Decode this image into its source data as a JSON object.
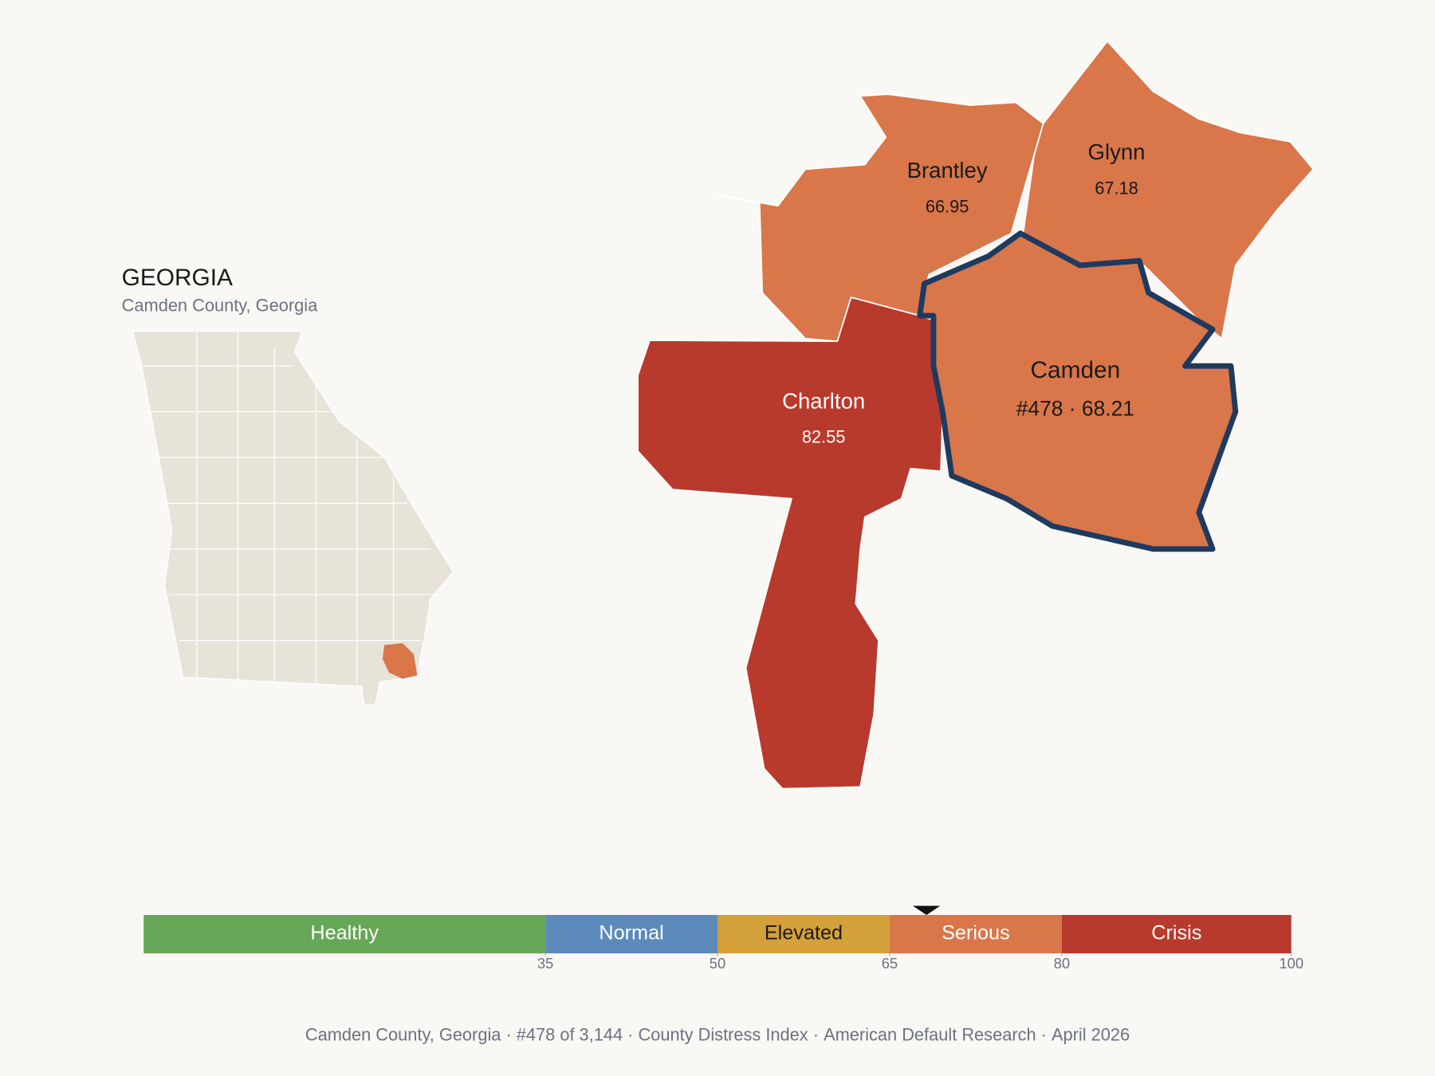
{
  "header": {
    "title": "GEORGIA",
    "subtitle": "Camden County, Georgia"
  },
  "counties": [
    {
      "name": "Brantley",
      "score": 66.95
    },
    {
      "name": "Glynn",
      "score": 67.18
    },
    {
      "name": "Charlton",
      "score": 82.55
    },
    {
      "name": "Camden",
      "score": 68.21,
      "score_label": "#478 · 68.21",
      "selected": true
    }
  ],
  "scale": {
    "xlim": [
      0,
      100
    ],
    "marker": 68.21,
    "bands": [
      {
        "name": "Healthy",
        "color": "#67a758",
        "min": 0,
        "max": 35
      },
      {
        "name": "Normal",
        "color": "#5b8abb",
        "min": 35,
        "max": 50
      },
      {
        "name": "Elevated",
        "color": "#d4a03a",
        "min": 50,
        "max": 65
      },
      {
        "name": "Serious",
        "color": "#d9764a",
        "min": 65,
        "max": 80
      },
      {
        "name": "Crisis",
        "color": "#b83a2c",
        "min": 80,
        "max": 100
      }
    ],
    "xticks": [
      35,
      50,
      65,
      80,
      100
    ]
  },
  "footer": [
    "Camden County, Georgia",
    "#478 of 3,144",
    "County Distress Index",
    "American Default Research",
    "April 2026"
  ]
}
